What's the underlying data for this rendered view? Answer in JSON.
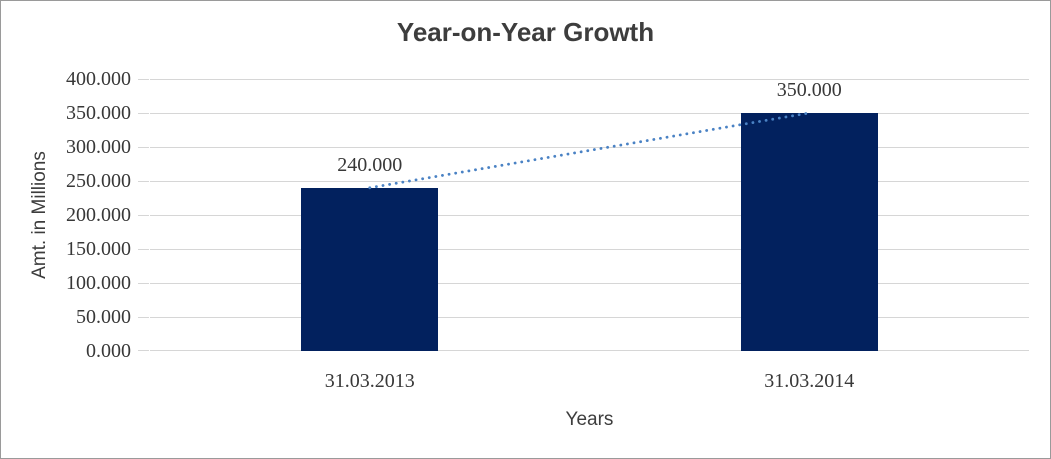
{
  "chart_data": {
    "type": "bar",
    "title": "Year-on-Year Growth",
    "xlabel": "Years",
    "ylabel": "Amt. in Millions",
    "categories": [
      "31.03.2013",
      "31.03.2014"
    ],
    "values": [
      240000,
      350000
    ],
    "value_labels": [
      "240.000",
      "350.000"
    ],
    "ylim": [
      0,
      400000
    ],
    "ytick_step": 50000,
    "ytick_labels": [
      "400.000",
      "350.000",
      "300.000",
      "250.000",
      "200.000",
      "150.000",
      "100.000",
      "50.000",
      "0.000"
    ],
    "grid": "horizontal",
    "legend_position": "none",
    "trendline": {
      "style": "dotted",
      "connects": [
        "31.03.2013",
        "31.03.2014"
      ],
      "color": "#4a82c4"
    },
    "colors": {
      "bar": "#02215e",
      "gridline": "#d6d6d6",
      "tick_text": "#383838",
      "title_text": "#3d3d3d",
      "background": "#ffffff",
      "border": "#9a9a9a"
    }
  }
}
